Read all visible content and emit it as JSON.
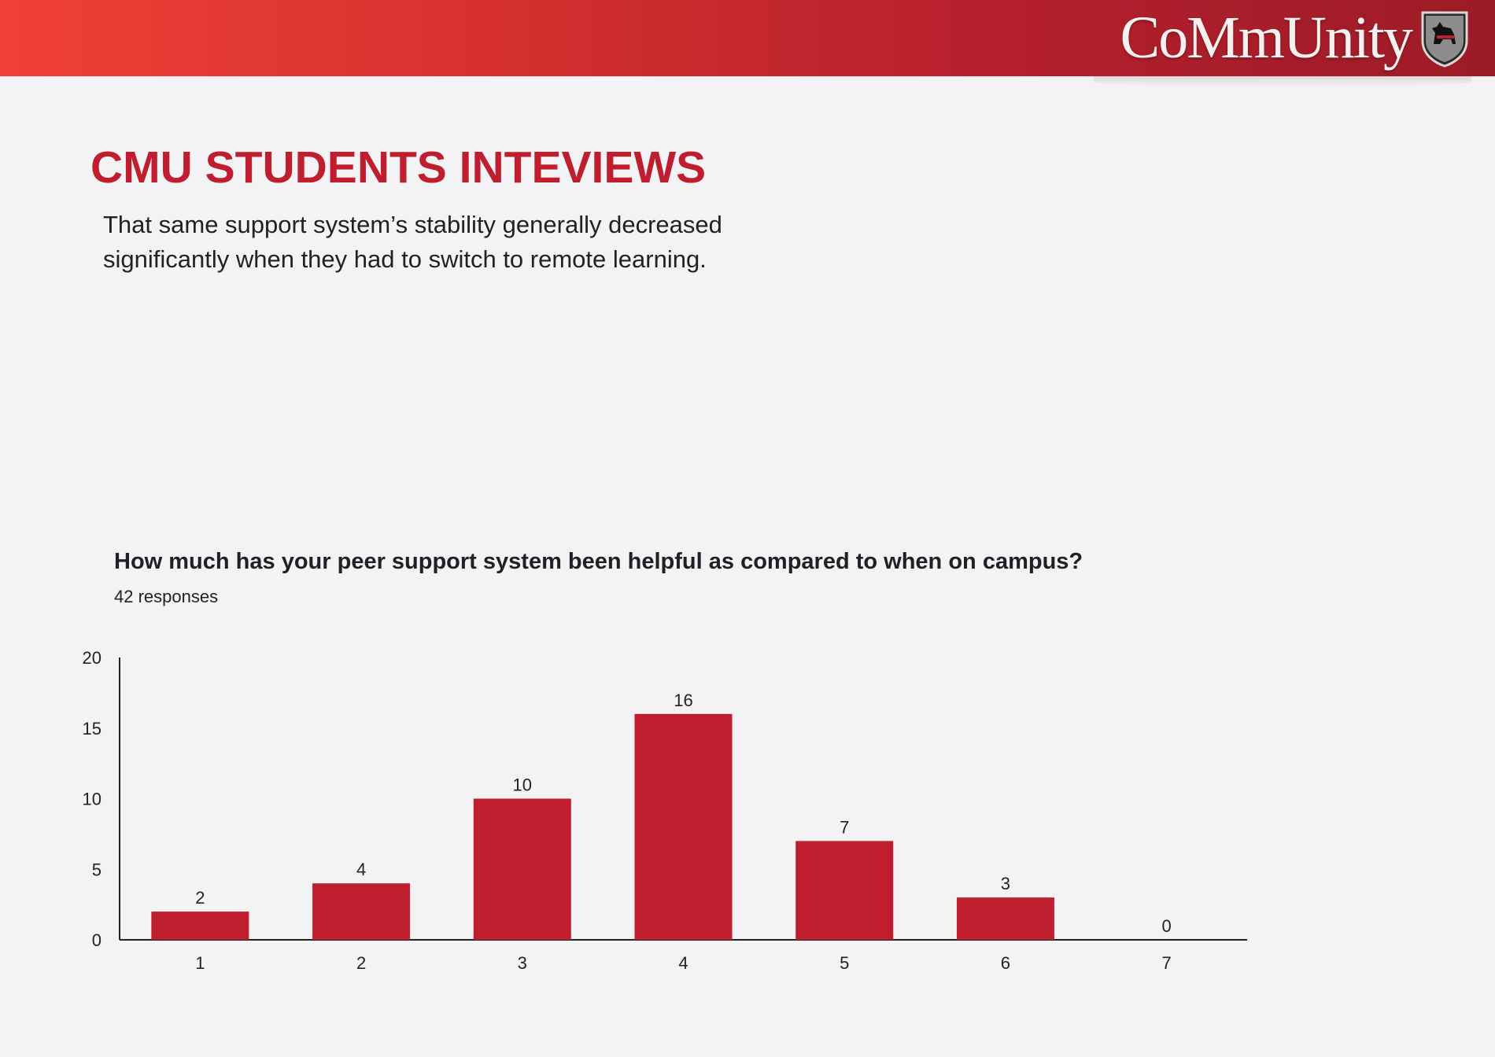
{
  "header": {
    "brand": "CoMmUnity",
    "crest_icon": "scottie-dog-crest-icon",
    "colors": {
      "bar_start": "#ef4037",
      "bar_end": "#9c1b28"
    }
  },
  "page": {
    "title": "CMU STUDENTS INTEVIEWS",
    "subtitle_line1": "That same support system’s stability generally decreased",
    "subtitle_line2": "significantly when they had to switch to remote learning."
  },
  "chart_data": {
    "type": "bar",
    "title": "How much has your peer support system been helpful as compared to when on campus?",
    "subtitle": "42 responses",
    "categories": [
      "1",
      "2",
      "3",
      "4",
      "5",
      "6",
      "7"
    ],
    "values": [
      2,
      4,
      10,
      16,
      7,
      3,
      0
    ],
    "ylim": [
      0,
      20
    ],
    "yticks": [
      0,
      5,
      10,
      15,
      20
    ],
    "grid": false,
    "bar_color": "#be1e2d"
  }
}
